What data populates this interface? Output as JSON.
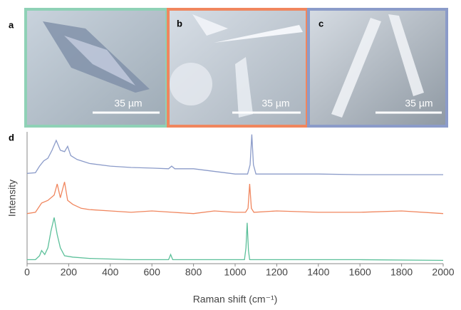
{
  "panels": [
    {
      "label": "a",
      "scale_bar": "35 µm"
    },
    {
      "label": "b",
      "scale_bar": "35 µm"
    },
    {
      "label": "c",
      "scale_bar": "35 µm"
    },
    {
      "label": "d"
    }
  ],
  "chart_data": {
    "type": "line",
    "xlabel": "Raman shift (cm⁻¹)",
    "ylabel": "Intensity",
    "xlim": [
      0,
      2000
    ],
    "ylim": [
      0,
      100
    ],
    "xticks": [
      0,
      200,
      400,
      600,
      800,
      1000,
      1200,
      1400,
      1600,
      1800,
      2000
    ],
    "series": [
      {
        "color": "#8b9bc9",
        "x": [
          0,
          40,
          60,
          80,
          100,
          120,
          140,
          160,
          180,
          195,
          210,
          240,
          300,
          400,
          500,
          600,
          680,
          695,
          710,
          800,
          1000,
          1060,
          1072,
          1080,
          1088,
          1100,
          1200,
          1400,
          1600,
          1800,
          2000
        ],
        "values": [
          68.5,
          69,
          74,
          78,
          80,
          86,
          93.5,
          86,
          85,
          89,
          82,
          79,
          76,
          74,
          73,
          72.5,
          72,
          74,
          72,
          72,
          68,
          68,
          75,
          98,
          75,
          68,
          68,
          68,
          67.5,
          67.5,
          67.5
        ]
      },
      {
        "color": "#f0865e",
        "x": [
          0,
          40,
          70,
          100,
          130,
          145,
          160,
          170,
          180,
          195,
          220,
          260,
          300,
          400,
          500,
          600,
          700,
          800,
          900,
          1000,
          1050,
          1062,
          1070,
          1078,
          1090,
          1200,
          1400,
          1600,
          1800,
          2000
        ],
        "values": [
          38,
          39,
          46,
          48,
          52,
          60.5,
          50,
          56,
          62,
          48,
          45,
          42,
          41,
          40,
          39,
          40,
          39,
          38,
          40,
          39,
          39,
          42,
          60.5,
          42,
          39,
          40,
          39,
          39,
          40,
          38
        ]
      },
      {
        "color": "#5cc09a",
        "x": [
          0,
          40,
          60,
          70,
          85,
          100,
          115,
          130,
          145,
          160,
          180,
          220,
          300,
          500,
          680,
          690,
          700,
          800,
          1000,
          1045,
          1052,
          1058,
          1064,
          1070,
          1200,
          1600,
          2000
        ],
        "values": [
          3,
          3,
          6,
          10,
          7,
          12,
          25,
          35,
          22,
          12,
          6,
          5,
          4,
          3,
          3,
          7,
          3,
          3,
          3,
          3,
          12,
          31,
          10,
          3,
          3,
          3,
          2.5
        ]
      }
    ]
  }
}
